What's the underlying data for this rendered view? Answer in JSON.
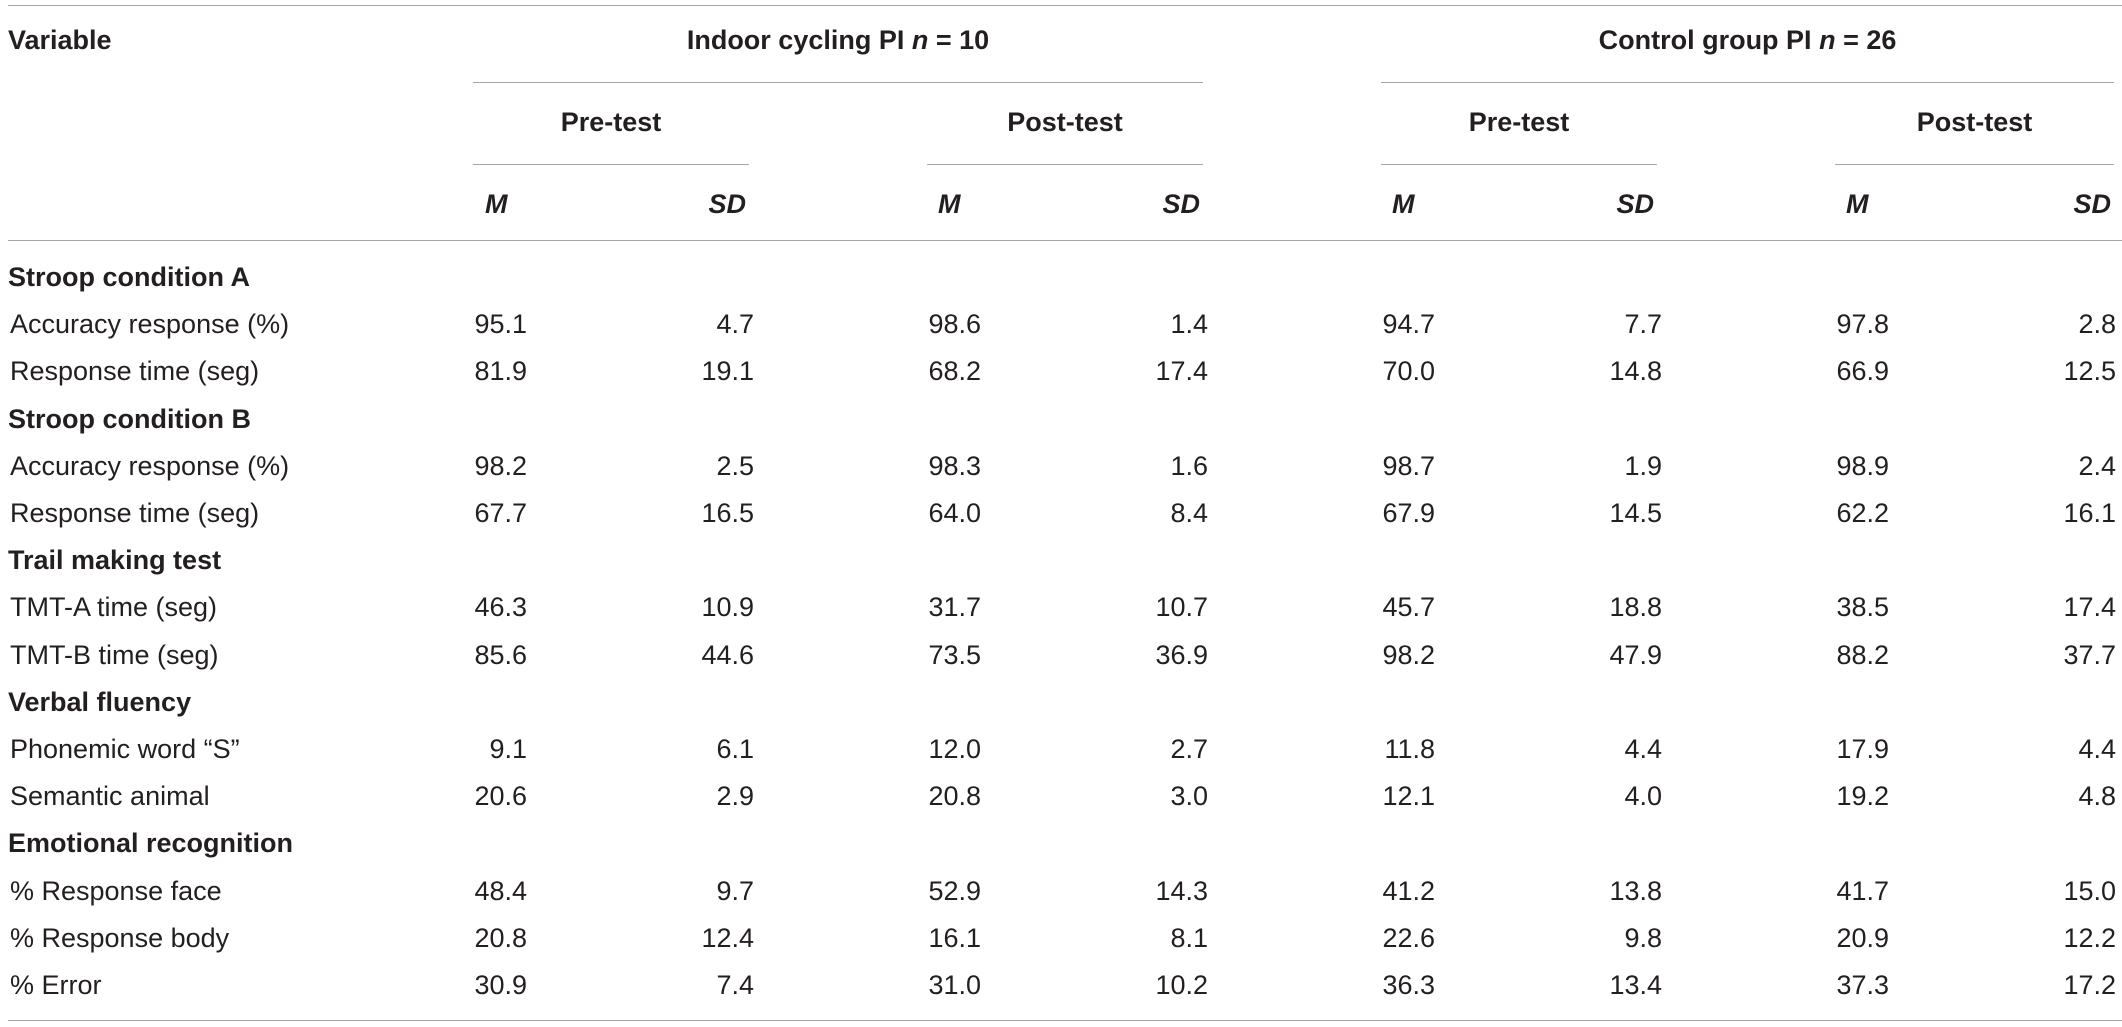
{
  "header": {
    "variable_label": "Variable",
    "group1": {
      "title_prefix": "Indoor cycling PI ",
      "n_symbol": "n",
      "n_value": " = 10"
    },
    "group2": {
      "title_prefix": "Control group PI ",
      "n_symbol": "n",
      "n_value": " = 26"
    },
    "pre": "Pre-test",
    "post": "Post-test",
    "m": "M",
    "sd": "SD"
  },
  "rows": [
    {
      "type": "section",
      "label": "Stroop condition A"
    },
    {
      "type": "data",
      "label": "Accuracy response (%)",
      "values": [
        "95.1",
        "4.7",
        "98.6",
        "1.4",
        "94.7",
        "7.7",
        "97.8",
        "2.8"
      ]
    },
    {
      "type": "data",
      "label": "Response time (seg)",
      "values": [
        "81.9",
        "19.1",
        "68.2",
        "17.4",
        "70.0",
        "14.8",
        "66.9",
        "12.5"
      ]
    },
    {
      "type": "section",
      "label": "Stroop condition B"
    },
    {
      "type": "data",
      "label": "Accuracy response (%)",
      "values": [
        "98.2",
        "2.5",
        "98.3",
        "1.6",
        "98.7",
        "1.9",
        "98.9",
        "2.4"
      ]
    },
    {
      "type": "data",
      "label": "Response time (seg)",
      "values": [
        "67.7",
        "16.5",
        "64.0",
        "8.4",
        "67.9",
        "14.5",
        "62.2",
        "16.1"
      ]
    },
    {
      "type": "section",
      "label": "Trail making test"
    },
    {
      "type": "data",
      "label": "TMT-A time (seg)",
      "values": [
        "46.3",
        "10.9",
        "31.7",
        "10.7",
        "45.7",
        "18.8",
        "38.5",
        "17.4"
      ]
    },
    {
      "type": "data",
      "label": "TMT-B time (seg)",
      "values": [
        "85.6",
        "44.6",
        "73.5",
        "36.9",
        "98.2",
        "47.9",
        "88.2",
        "37.7"
      ]
    },
    {
      "type": "section",
      "label": "Verbal fluency"
    },
    {
      "type": "data",
      "label": "Phonemic word “S”",
      "values": [
        "9.1",
        "6.1",
        "12.0",
        "2.7",
        "11.8",
        "4.4",
        "17.9",
        "4.4"
      ]
    },
    {
      "type": "data",
      "label": "Semantic animal",
      "values": [
        "20.6",
        "2.9",
        "20.8",
        "3.0",
        "12.1",
        "4.0",
        "19.2",
        "4.8"
      ]
    },
    {
      "type": "section",
      "label": "Emotional recognition"
    },
    {
      "type": "data",
      "label": "% Response face",
      "values": [
        "48.4",
        "9.7",
        "52.9",
        "14.3",
        "41.2",
        "13.8",
        "41.7",
        "15.0"
      ]
    },
    {
      "type": "data",
      "label": "% Response body",
      "values": [
        "20.8",
        "12.4",
        "16.1",
        "8.1",
        "22.6",
        "9.8",
        "20.9",
        "12.2"
      ]
    },
    {
      "type": "data",
      "label": "% Error",
      "values": [
        "30.9",
        "7.4",
        "31.0",
        "10.2",
        "36.3",
        "13.4",
        "37.3",
        "17.2"
      ]
    }
  ]
}
